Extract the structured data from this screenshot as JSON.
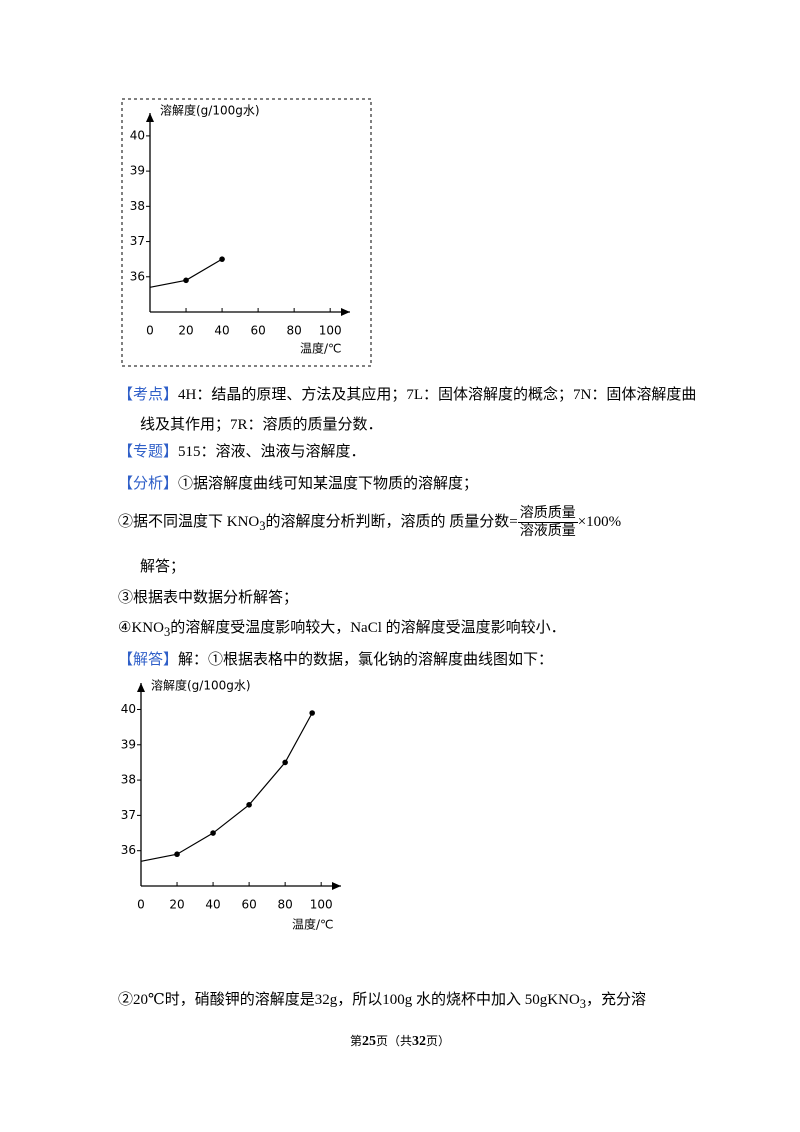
{
  "chart_data": [
    {
      "type": "line",
      "y_label": "溶解度(g/100g水)",
      "x_label": "温度/℃",
      "x": [
        0,
        20,
        40
      ],
      "values": [
        35.7,
        35.9,
        36.5
      ],
      "color": "#000000",
      "xlim": [
        0,
        111
      ],
      "ylim": [
        35,
        40.65
      ],
      "xticks": [
        0,
        20,
        40,
        60,
        80,
        100
      ],
      "yticks": [
        36,
        37,
        38,
        39,
        40
      ],
      "grid": false,
      "frame": "dashed"
    },
    {
      "type": "line",
      "y_label": "溶解度(g/100g水)",
      "x_label": "温度/℃",
      "x": [
        0,
        20,
        40,
        60,
        80,
        95
      ],
      "values": [
        35.7,
        35.9,
        36.5,
        37.3,
        38.5,
        39.9
      ],
      "color": "#000000",
      "xlim": [
        0,
        111
      ],
      "ylim": [
        35,
        40.75
      ],
      "xticks": [
        0,
        20,
        40,
        60,
        80,
        100
      ],
      "yticks": [
        36,
        37,
        38,
        39,
        40
      ],
      "grid": false,
      "frame": "none"
    }
  ],
  "document": {
    "kaodian": {
      "label": "【考点】",
      "text": "4H：结晶的原理、方法及其应用；7L：固体溶解度的概念；7N：固体溶解度曲线及其作用；7R：溶质的质量分数．"
    },
    "zhuanti": {
      "label": "【专题】",
      "text": "515：溶液、浊液与溶解度．"
    },
    "fenxi": {
      "label": "【分析】",
      "text": "①据溶解度曲线可知某温度下物质的溶解度；"
    },
    "item2": {
      "before": "②据不同温度下 KNO",
      "sub": "3",
      "after": "的溶解度分析判断，溶质的 质量分数=",
      "numerator": "溶质质量",
      "denominator": "溶液质量",
      "tail": "×100%",
      "next_line": "解答；"
    },
    "item3": "③根据表中数据分析解答；",
    "item4": {
      "before": "④KNO",
      "sub": "3",
      "after": "的溶解度受温度影响较大，NaCl 的溶解度受温度影响较小．"
    },
    "jieda": {
      "label": "【解答】",
      "text": "解：①根据表格中的数据，氯化钠的溶解度曲线图如下："
    },
    "item5": {
      "before": "②20℃时，硝酸钾的溶解度是32g，所以100g 水的烧杯中加入 50gKNO",
      "sub": "3",
      "after": "，充分溶"
    }
  },
  "footer": {
    "p1": "第",
    "page": "25",
    "p2": "页（共",
    "total": "32",
    "p3": "页）"
  }
}
